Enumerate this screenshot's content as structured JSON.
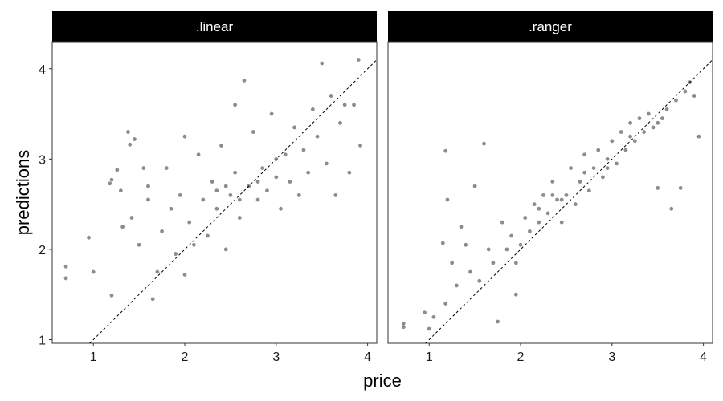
{
  "chart_data": {
    "type": "scatter",
    "facets": [
      ".linear",
      ".ranger"
    ],
    "xlabel": "price",
    "ylabel": "predictions",
    "xlim": [
      0.55,
      4.1
    ],
    "ylim": [
      0.96,
      4.3
    ],
    "x_ticks": [
      1,
      2,
      3,
      4
    ],
    "y_ticks": [
      1,
      2,
      3,
      4
    ],
    "reference_line": {
      "slope": 1,
      "intercept": 0,
      "style": "dashed"
    },
    "series": [
      {
        "facet": ".linear",
        "points": [
          {
            "x": 0.7,
            "y": 1.81
          },
          {
            "x": 0.7,
            "y": 1.68
          },
          {
            "x": 0.95,
            "y": 2.13
          },
          {
            "x": 1.0,
            "y": 1.75
          },
          {
            "x": 1.18,
            "y": 2.73
          },
          {
            "x": 1.2,
            "y": 2.77
          },
          {
            "x": 1.2,
            "y": 1.49
          },
          {
            "x": 1.26,
            "y": 2.88
          },
          {
            "x": 1.3,
            "y": 2.65
          },
          {
            "x": 1.32,
            "y": 2.25
          },
          {
            "x": 1.38,
            "y": 3.3
          },
          {
            "x": 1.4,
            "y": 3.16
          },
          {
            "x": 1.42,
            "y": 2.35
          },
          {
            "x": 1.45,
            "y": 3.22
          },
          {
            "x": 1.5,
            "y": 2.05
          },
          {
            "x": 1.55,
            "y": 2.9
          },
          {
            "x": 1.6,
            "y": 2.55
          },
          {
            "x": 1.65,
            "y": 1.45
          },
          {
            "x": 1.7,
            "y": 1.75
          },
          {
            "x": 1.75,
            "y": 2.2
          },
          {
            "x": 1.8,
            "y": 2.9
          },
          {
            "x": 1.85,
            "y": 2.45
          },
          {
            "x": 1.9,
            "y": 1.95
          },
          {
            "x": 1.95,
            "y": 2.6
          },
          {
            "x": 2.0,
            "y": 1.72
          },
          {
            "x": 2.0,
            "y": 3.25
          },
          {
            "x": 2.05,
            "y": 2.3
          },
          {
            "x": 2.1,
            "y": 2.05
          },
          {
            "x": 2.15,
            "y": 3.05
          },
          {
            "x": 2.2,
            "y": 2.55
          },
          {
            "x": 2.25,
            "y": 2.15
          },
          {
            "x": 2.3,
            "y": 2.75
          },
          {
            "x": 2.35,
            "y": 2.45
          },
          {
            "x": 2.4,
            "y": 3.15
          },
          {
            "x": 2.45,
            "y": 2.0
          },
          {
            "x": 2.5,
            "y": 2.6
          },
          {
            "x": 2.55,
            "y": 2.85
          },
          {
            "x": 2.6,
            "y": 2.35
          },
          {
            "x": 2.65,
            "y": 3.87
          },
          {
            "x": 2.7,
            "y": 2.7
          },
          {
            "x": 2.75,
            "y": 3.3
          },
          {
            "x": 2.8,
            "y": 2.55
          },
          {
            "x": 2.85,
            "y": 2.9
          },
          {
            "x": 2.9,
            "y": 2.65
          },
          {
            "x": 2.95,
            "y": 3.5
          },
          {
            "x": 3.0,
            "y": 2.8
          },
          {
            "x": 3.05,
            "y": 2.45
          },
          {
            "x": 3.1,
            "y": 3.05
          },
          {
            "x": 3.15,
            "y": 2.75
          },
          {
            "x": 3.2,
            "y": 3.35
          },
          {
            "x": 3.25,
            "y": 2.6
          },
          {
            "x": 3.3,
            "y": 3.1
          },
          {
            "x": 3.35,
            "y": 2.85
          },
          {
            "x": 3.4,
            "y": 3.55
          },
          {
            "x": 3.45,
            "y": 3.25
          },
          {
            "x": 3.5,
            "y": 4.06
          },
          {
            "x": 3.55,
            "y": 2.95
          },
          {
            "x": 3.6,
            "y": 3.7
          },
          {
            "x": 3.65,
            "y": 2.6
          },
          {
            "x": 3.7,
            "y": 3.4
          },
          {
            "x": 3.75,
            "y": 3.6
          },
          {
            "x": 3.8,
            "y": 2.85
          },
          {
            "x": 3.85,
            "y": 3.6
          },
          {
            "x": 3.9,
            "y": 4.1
          },
          {
            "x": 3.92,
            "y": 3.15
          },
          {
            "x": 2.55,
            "y": 3.6
          },
          {
            "x": 2.35,
            "y": 2.65
          },
          {
            "x": 2.6,
            "y": 2.55
          },
          {
            "x": 2.8,
            "y": 2.75
          },
          {
            "x": 3.0,
            "y": 3.0
          },
          {
            "x": 2.45,
            "y": 2.7
          },
          {
            "x": 1.6,
            "y": 2.7
          }
        ]
      },
      {
        "facet": ".ranger",
        "points": [
          {
            "x": 0.72,
            "y": 1.18
          },
          {
            "x": 0.72,
            "y": 1.14
          },
          {
            "x": 0.95,
            "y": 1.3
          },
          {
            "x": 1.0,
            "y": 1.12
          },
          {
            "x": 1.15,
            "y": 2.07
          },
          {
            "x": 1.18,
            "y": 3.09
          },
          {
            "x": 1.18,
            "y": 1.4
          },
          {
            "x": 1.2,
            "y": 2.55
          },
          {
            "x": 1.25,
            "y": 1.85
          },
          {
            "x": 1.3,
            "y": 1.6
          },
          {
            "x": 1.35,
            "y": 2.25
          },
          {
            "x": 1.4,
            "y": 2.05
          },
          {
            "x": 1.45,
            "y": 1.75
          },
          {
            "x": 1.5,
            "y": 2.7
          },
          {
            "x": 1.55,
            "y": 1.65
          },
          {
            "x": 1.6,
            "y": 3.17
          },
          {
            "x": 1.65,
            "y": 2.0
          },
          {
            "x": 1.7,
            "y": 1.85
          },
          {
            "x": 1.75,
            "y": 1.2
          },
          {
            "x": 1.8,
            "y": 2.3
          },
          {
            "x": 1.85,
            "y": 2.0
          },
          {
            "x": 1.9,
            "y": 2.15
          },
          {
            "x": 1.95,
            "y": 1.85
          },
          {
            "x": 2.0,
            "y": 2.05
          },
          {
            "x": 2.05,
            "y": 2.35
          },
          {
            "x": 2.1,
            "y": 2.2
          },
          {
            "x": 2.15,
            "y": 2.5
          },
          {
            "x": 2.2,
            "y": 2.3
          },
          {
            "x": 2.25,
            "y": 2.6
          },
          {
            "x": 2.3,
            "y": 2.4
          },
          {
            "x": 2.35,
            "y": 2.75
          },
          {
            "x": 2.4,
            "y": 2.55
          },
          {
            "x": 2.45,
            "y": 2.3
          },
          {
            "x": 2.5,
            "y": 2.6
          },
          {
            "x": 2.55,
            "y": 2.9
          },
          {
            "x": 2.6,
            "y": 2.5
          },
          {
            "x": 2.65,
            "y": 2.75
          },
          {
            "x": 2.7,
            "y": 3.05
          },
          {
            "x": 2.75,
            "y": 2.65
          },
          {
            "x": 2.8,
            "y": 2.9
          },
          {
            "x": 2.85,
            "y": 3.1
          },
          {
            "x": 2.9,
            "y": 2.8
          },
          {
            "x": 2.95,
            "y": 3.0
          },
          {
            "x": 3.0,
            "y": 3.2
          },
          {
            "x": 3.05,
            "y": 2.95
          },
          {
            "x": 3.1,
            "y": 3.3
          },
          {
            "x": 3.15,
            "y": 3.1
          },
          {
            "x": 3.2,
            "y": 3.4
          },
          {
            "x": 3.25,
            "y": 3.2
          },
          {
            "x": 3.3,
            "y": 3.45
          },
          {
            "x": 3.35,
            "y": 3.3
          },
          {
            "x": 3.4,
            "y": 3.5
          },
          {
            "x": 3.45,
            "y": 3.35
          },
          {
            "x": 3.5,
            "y": 2.68
          },
          {
            "x": 3.55,
            "y": 3.45
          },
          {
            "x": 3.6,
            "y": 3.55
          },
          {
            "x": 3.65,
            "y": 2.45
          },
          {
            "x": 3.7,
            "y": 3.65
          },
          {
            "x": 3.75,
            "y": 2.68
          },
          {
            "x": 3.8,
            "y": 3.75
          },
          {
            "x": 3.85,
            "y": 3.85
          },
          {
            "x": 3.9,
            "y": 3.7
          },
          {
            "x": 3.95,
            "y": 3.25
          },
          {
            "x": 2.2,
            "y": 2.45
          },
          {
            "x": 2.45,
            "y": 2.55
          },
          {
            "x": 2.7,
            "y": 2.85
          },
          {
            "x": 2.95,
            "y": 2.9
          },
          {
            "x": 3.2,
            "y": 3.25
          },
          {
            "x": 1.95,
            "y": 1.5
          },
          {
            "x": 2.35,
            "y": 2.6
          },
          {
            "x": 3.5,
            "y": 3.4
          },
          {
            "x": 1.05,
            "y": 1.25
          }
        ]
      }
    ]
  }
}
